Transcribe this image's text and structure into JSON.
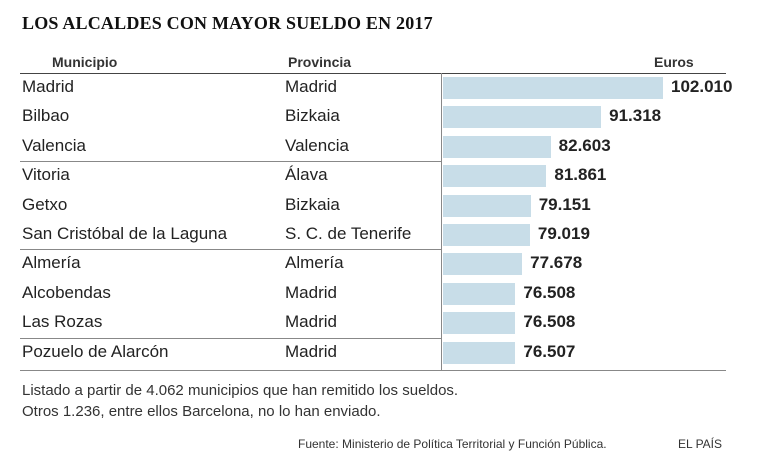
{
  "title": "LOS ALCALDES CON MAYOR SUELDO EN 2017",
  "headers": {
    "municipio": "Municipio",
    "provincia": "Provincia",
    "euros": "Euros"
  },
  "chart_data": {
    "type": "bar",
    "orientation": "horizontal",
    "title": "LOS ALCALDES CON MAYOR SUELDO EN 2017",
    "value_label": "Euros",
    "bar_color": "#c8dde8",
    "rows": [
      {
        "municipio": "Madrid",
        "provincia": "Madrid",
        "value": 102010,
        "label": "102.010"
      },
      {
        "municipio": "Bilbao",
        "provincia": "Bizkaia",
        "value": 91318,
        "label": "91.318"
      },
      {
        "municipio": "Valencia",
        "provincia": "Valencia",
        "value": 82603,
        "label": "82.603"
      },
      {
        "municipio": "Vitoria",
        "provincia": "Álava",
        "value": 81861,
        "label": "81.861"
      },
      {
        "municipio": "Getxo",
        "provincia": "Bizkaia",
        "value": 79151,
        "label": "79.151"
      },
      {
        "municipio": "San Cristóbal de la Laguna",
        "provincia": "S. C. de Tenerife",
        "value": 79019,
        "label": "79.019"
      },
      {
        "municipio": "Almería",
        "provincia": "Almería",
        "value": 77678,
        "label": "77.678"
      },
      {
        "municipio": "Alcobendas",
        "provincia": "Madrid",
        "value": 76508,
        "label": "76.508"
      },
      {
        "municipio": "Las Rozas",
        "provincia": "Madrid",
        "value": 76508,
        "label": "76.508"
      },
      {
        "municipio": "Pozuelo de Alarcón",
        "provincia": "Madrid",
        "value": 76507,
        "label": "76.507"
      }
    ]
  },
  "notes": [
    "Listado a partir de 4.062 municipios que han remitido los sueldos.",
    "Otros 1.236, entre ellos Barcelona, no lo han enviado."
  ],
  "source": "Fuente: Ministerio de Política Territorial y Función Pública.",
  "brand": "EL PAÍS"
}
